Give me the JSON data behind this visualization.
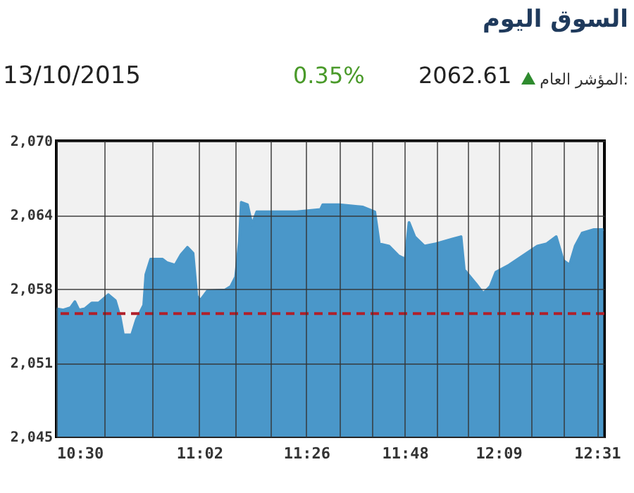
{
  "chart_data": {
    "type": "area",
    "title": "السوق اليوم",
    "subtitle": "13/10/2015",
    "annotations": [
      "المؤشر العام:",
      "2062.61",
      "0.35%"
    ],
    "x": [
      10.5,
      10.526,
      10.553,
      10.569,
      10.584,
      10.606,
      10.632,
      10.658,
      10.694,
      10.72,
      10.738,
      10.75,
      10.781,
      10.799,
      10.826,
      10.834,
      10.852,
      10.896,
      10.913,
      10.943,
      10.966,
      10.989,
      11.01,
      11.024,
      11.037,
      11.063,
      11.13,
      11.151,
      11.169,
      11.183,
      11.19,
      11.213,
      11.23,
      11.248,
      11.397,
      11.486,
      11.494,
      11.556,
      11.644,
      11.688,
      11.705,
      11.741,
      11.776,
      11.802,
      11.816,
      11.837,
      11.873,
      11.916,
      11.978,
      12.01,
      12.022,
      12.066,
      12.093,
      12.119,
      12.14,
      12.189,
      12.242,
      12.295,
      12.33,
      12.365,
      12.391,
      12.415,
      12.436,
      12.462,
      12.506,
      12.541
    ],
    "series": [
      {
        "color": "#4a97c9",
        "values": [
          2055.8,
          2055.7,
          2055.9,
          2056.4,
          2055.7,
          2055.8,
          2056.3,
          2056.3,
          2057.0,
          2056.5,
          2055.1,
          2053.6,
          2053.6,
          2054.9,
          2056.1,
          2058.7,
          2060.0,
          2060.0,
          2059.7,
          2059.5,
          2060.4,
          2061.0,
          2060.5,
          2056.9,
          2056.5,
          2057.3,
          2057.4,
          2057.7,
          2058.5,
          2061.5,
          2064.8,
          2064.6,
          2062.9,
          2064.0,
          2064.0,
          2064.2,
          2064.6,
          2064.6,
          2064.4,
          2064.0,
          2061.3,
          2061.1,
          2060.3,
          2060.0,
          2063.1,
          2061.9,
          2061.1,
          2061.3,
          2061.7,
          2061.9,
          2059.1,
          2057.9,
          2057.1,
          2057.7,
          2058.9,
          2059.5,
          2060.3,
          2061.1,
          2061.3,
          2061.9,
          2059.9,
          2059.5,
          2061.1,
          2062.2,
          2062.5,
          2062.5
        ]
      }
    ],
    "xlim": [
      10.5,
      12.545
    ],
    "xticks": [
      {
        "value": 10.5,
        "label": "10:30"
      },
      {
        "value": 10.678,
        "label": null
      },
      {
        "value": 10.856,
        "label": null
      },
      {
        "value": 11.033,
        "label": "11:02"
      },
      {
        "value": 11.167,
        "label": null
      },
      {
        "value": 11.3,
        "label": null
      },
      {
        "value": 11.433,
        "label": "11:26"
      },
      {
        "value": 11.556,
        "label": null
      },
      {
        "value": 11.678,
        "label": null
      },
      {
        "value": 11.8,
        "label": "11:48"
      },
      {
        "value": 11.917,
        "label": null
      },
      {
        "value": 12.033,
        "label": null
      },
      {
        "value": 12.15,
        "label": "12:09"
      },
      {
        "value": 12.272,
        "label": null
      },
      {
        "value": 12.394,
        "label": null
      },
      {
        "value": 12.517,
        "label": "12:31"
      }
    ],
    "ylim": [
      2045,
      2070
    ],
    "yticks": [
      {
        "value": 2045,
        "label": "2,045"
      },
      {
        "value": 2051.25,
        "label": "2,051"
      },
      {
        "value": 2057.5,
        "label": "2,058"
      },
      {
        "value": 2063.75,
        "label": "2,064"
      },
      {
        "value": 2070,
        "label": "2,070"
      }
    ],
    "ref_lines": [
      {
        "axis": "y",
        "value": 2055.4,
        "color": "#b0202a",
        "line_style": "dashed"
      }
    ],
    "grid": true
  }
}
